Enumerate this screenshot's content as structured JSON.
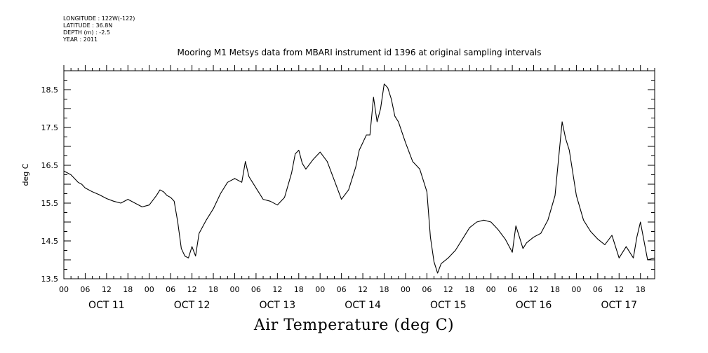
{
  "metadata": {
    "longitude": "LONGITUDE : 122W(-122)",
    "latitude": "LATITUDE : 36.8N",
    "depth": "DEPTH (m) : -2.5",
    "year": "YEAR : 2011"
  },
  "title": "Mooring M1 Metsys data from MBARI instrument id 1396 at original sampling intervals",
  "footer_title": "Air Temperature (deg C)",
  "chart_data": {
    "type": "line",
    "title": "Mooring M1 Metsys data from MBARI instrument id 1396 at original sampling intervals",
    "xlabel": "Air Temperature (deg C)",
    "ylabel": "deg C",
    "xlim": [
      "2011-10-11 00:00",
      "2011-10-17 22:00"
    ],
    "ylim": [
      13.5,
      19.0
    ],
    "yticks": [
      "13.5",
      "14.5",
      "15.5",
      "16.5",
      "17.5",
      "18.5"
    ],
    "hour_ticks": [
      "00",
      "06",
      "12",
      "18"
    ],
    "day_labels": [
      "OCT 11",
      "OCT 12",
      "OCT 13",
      "OCT 14",
      "OCT 15",
      "OCT 16",
      "OCT 17"
    ],
    "grid": false,
    "series": [
      {
        "x": [
          "2011-10-11 00:00",
          "2011-10-11 02:00",
          "2011-10-11 04:00",
          "2011-10-11 05:00",
          "2011-10-11 06:00",
          "2011-10-11 08:00",
          "2011-10-11 10:00",
          "2011-10-11 12:00",
          "2011-10-11 14:00",
          "2011-10-11 16:00",
          "2011-10-11 18:00",
          "2011-10-11 20:00",
          "2011-10-11 22:00",
          "2011-10-12 00:00",
          "2011-10-12 02:00",
          "2011-10-12 03:00",
          "2011-10-12 04:00",
          "2011-10-12 05:00",
          "2011-10-12 06:00",
          "2011-10-12 07:00",
          "2011-10-12 08:00",
          "2011-10-12 09:00",
          "2011-10-12 10:00",
          "2011-10-12 11:00",
          "2011-10-12 12:00",
          "2011-10-12 13:00",
          "2011-10-12 14:00",
          "2011-10-12 16:00",
          "2011-10-12 18:00",
          "2011-10-12 20:00",
          "2011-10-12 22:00",
          "2011-10-13 00:00",
          "2011-10-13 02:00",
          "2011-10-13 03:00",
          "2011-10-13 04:00",
          "2011-10-13 06:00",
          "2011-10-13 08:00",
          "2011-10-13 10:00",
          "2011-10-13 12:00",
          "2011-10-13 14:00",
          "2011-10-13 16:00",
          "2011-10-13 17:00",
          "2011-10-13 18:00",
          "2011-10-13 19:00",
          "2011-10-13 20:00",
          "2011-10-13 22:00",
          "2011-10-14 00:00",
          "2011-10-14 02:00",
          "2011-10-14 04:00",
          "2011-10-14 06:00",
          "2011-10-14 08:00",
          "2011-10-14 10:00",
          "2011-10-14 11:00",
          "2011-10-14 12:00",
          "2011-10-14 13:00",
          "2011-10-14 14:00",
          "2011-10-14 15:00",
          "2011-10-14 16:00",
          "2011-10-14 17:00",
          "2011-10-14 18:00",
          "2011-10-14 19:00",
          "2011-10-14 20:00",
          "2011-10-14 21:00",
          "2011-10-14 22:00",
          "2011-10-15 00:00",
          "2011-10-15 02:00",
          "2011-10-15 04:00",
          "2011-10-15 06:00",
          "2011-10-15 07:00",
          "2011-10-15 08:00",
          "2011-10-15 09:00",
          "2011-10-15 10:00",
          "2011-10-15 12:00",
          "2011-10-15 14:00",
          "2011-10-15 16:00",
          "2011-10-15 18:00",
          "2011-10-15 20:00",
          "2011-10-15 22:00",
          "2011-10-16 00:00",
          "2011-10-16 02:00",
          "2011-10-16 04:00",
          "2011-10-16 06:00",
          "2011-10-16 07:00",
          "2011-10-16 08:00",
          "2011-10-16 09:00",
          "2011-10-16 10:00",
          "2011-10-16 12:00",
          "2011-10-16 14:00",
          "2011-10-16 16:00",
          "2011-10-16 18:00",
          "2011-10-16 20:00",
          "2011-10-16 21:00",
          "2011-10-16 22:00",
          "2011-10-17 00:00",
          "2011-10-17 02:00",
          "2011-10-17 04:00",
          "2011-10-17 06:00",
          "2011-10-17 08:00",
          "2011-10-17 10:00",
          "2011-10-17 12:00",
          "2011-10-17 14:00",
          "2011-10-17 16:00",
          "2011-10-17 17:00",
          "2011-10-17 18:00",
          "2011-10-17 19:00",
          "2011-10-17 20:00",
          "2011-10-17 22:00"
        ],
        "y": [
          16.35,
          16.25,
          16.05,
          16.0,
          15.9,
          15.8,
          15.72,
          15.62,
          15.55,
          15.5,
          15.6,
          15.5,
          15.4,
          15.45,
          15.7,
          15.85,
          15.8,
          15.7,
          15.65,
          15.55,
          15.0,
          14.3,
          14.1,
          14.05,
          14.35,
          14.1,
          14.7,
          15.05,
          15.35,
          15.75,
          16.05,
          16.15,
          16.05,
          16.6,
          16.2,
          15.9,
          15.6,
          15.55,
          15.45,
          15.65,
          16.3,
          16.8,
          16.9,
          16.55,
          16.4,
          16.65,
          16.85,
          16.6,
          16.1,
          15.6,
          15.85,
          16.45,
          16.9,
          17.1,
          17.3,
          17.3,
          18.3,
          17.65,
          18.0,
          18.65,
          18.55,
          18.25,
          17.8,
          17.65,
          17.1,
          16.6,
          16.4,
          15.8,
          14.6,
          13.95,
          13.65,
          13.9,
          14.05,
          14.25,
          14.55,
          14.85,
          15.0,
          15.05,
          15.0,
          14.8,
          14.55,
          14.2,
          14.9,
          14.6,
          14.3,
          14.45,
          14.6,
          14.7,
          15.05,
          15.7,
          17.65,
          17.2,
          16.9,
          15.7,
          15.05,
          14.75,
          14.55,
          14.4,
          14.65,
          14.05,
          14.35,
          14.05,
          14.6,
          15.0,
          14.5,
          14.0,
          14.05
        ]
      }
    ]
  }
}
